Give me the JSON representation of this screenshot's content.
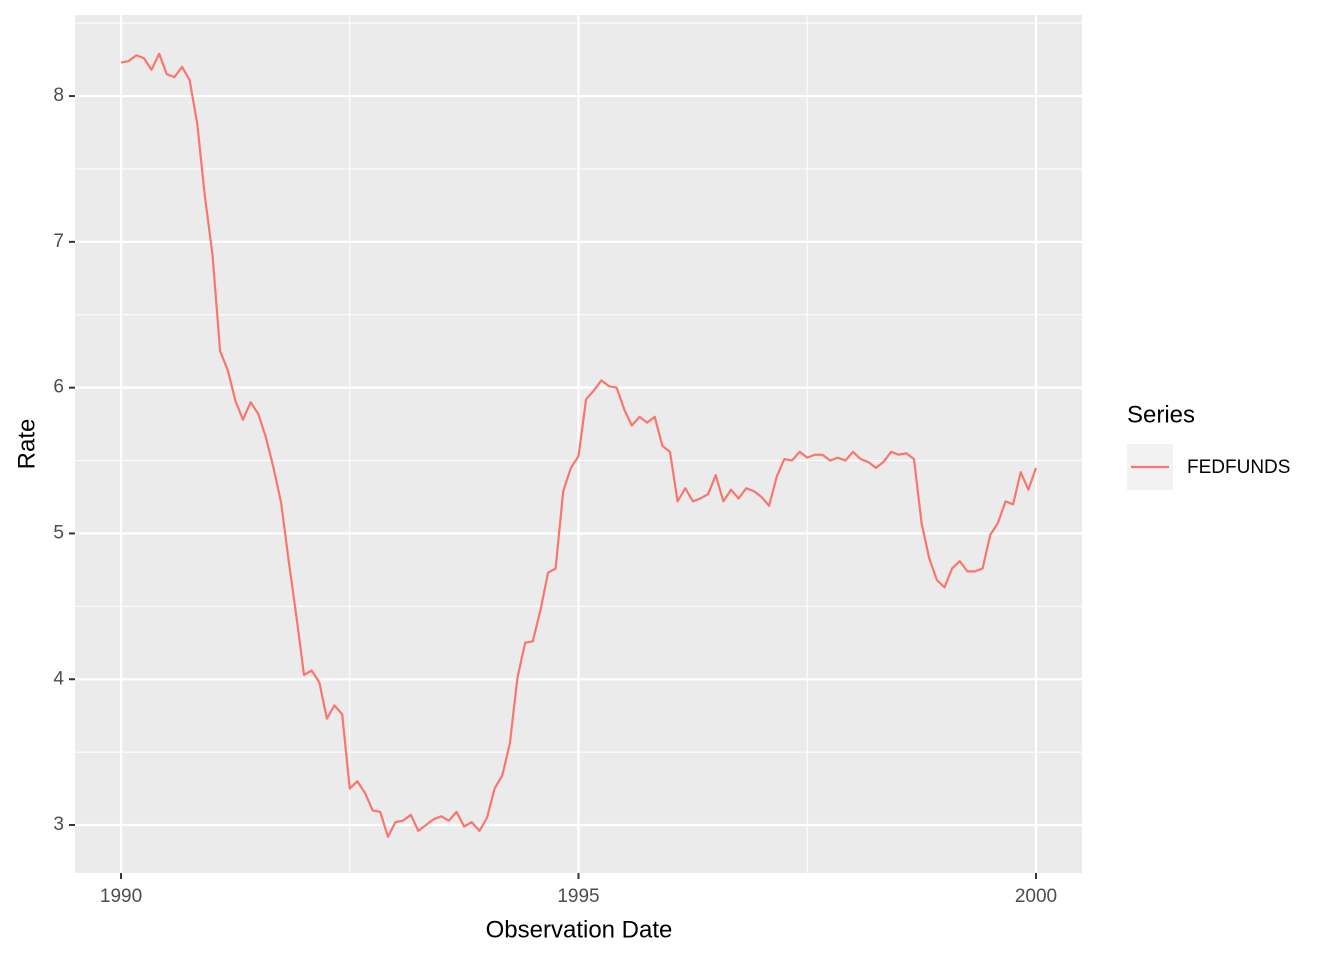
{
  "chart_data": {
    "type": "line",
    "x_label": "Observation Date",
    "y_label": "Rate",
    "legend_title": "Series",
    "legend_position": "right",
    "grid": true,
    "xlim": [
      1989.497,
      2000.503
    ],
    "xticks": [
      1990,
      1995,
      2000
    ],
    "ylim": [
      2.671,
      8.556
    ],
    "yticks": [
      3,
      4,
      5,
      6,
      7,
      8
    ],
    "x": [
      1990,
      1990.083,
      1990.167,
      1990.25,
      1990.333,
      1990.417,
      1990.5,
      1990.583,
      1990.667,
      1990.75,
      1990.833,
      1990.917,
      1991,
      1991.083,
      1991.167,
      1991.25,
      1991.333,
      1991.417,
      1991.5,
      1991.583,
      1991.667,
      1991.75,
      1991.833,
      1991.917,
      1992,
      1992.083,
      1992.167,
      1992.25,
      1992.333,
      1992.417,
      1992.5,
      1992.583,
      1992.667,
      1992.75,
      1992.833,
      1992.917,
      1993,
      1993.083,
      1993.167,
      1993.25,
      1993.333,
      1993.417,
      1993.5,
      1993.583,
      1993.667,
      1993.75,
      1993.833,
      1993.917,
      1994,
      1994.083,
      1994.167,
      1994.25,
      1994.333,
      1994.417,
      1994.5,
      1994.583,
      1994.667,
      1994.75,
      1994.833,
      1994.917,
      1995,
      1995.083,
      1995.167,
      1995.25,
      1995.333,
      1995.417,
      1995.5,
      1995.583,
      1995.667,
      1995.75,
      1995.833,
      1995.917,
      1996,
      1996.083,
      1996.167,
      1996.25,
      1996.333,
      1996.417,
      1996.5,
      1996.583,
      1996.667,
      1996.75,
      1996.833,
      1996.917,
      1997,
      1997.083,
      1997.167,
      1997.25,
      1997.333,
      1997.417,
      1997.5,
      1997.583,
      1997.667,
      1997.75,
      1997.833,
      1997.917,
      1998,
      1998.083,
      1998.167,
      1998.25,
      1998.333,
      1998.417,
      1998.5,
      1998.583,
      1998.667,
      1998.75,
      1998.833,
      1998.917,
      1999,
      1999.083,
      1999.167,
      1999.25,
      1999.333,
      1999.417,
      1999.5,
      1999.583,
      1999.667,
      1999.75,
      1999.833,
      1999.917,
      2000
    ],
    "series": [
      {
        "name": "FEDFUNDS",
        "color": "#F8766D",
        "values": [
          8.23,
          8.24,
          8.28,
          8.26,
          8.18,
          8.29,
          8.15,
          8.13,
          8.2,
          8.11,
          7.81,
          7.31,
          6.91,
          6.25,
          6.12,
          5.91,
          5.78,
          5.9,
          5.82,
          5.66,
          5.45,
          5.21,
          4.81,
          4.43,
          4.03,
          4.06,
          3.98,
          3.73,
          3.82,
          3.76,
          3.25,
          3.3,
          3.22,
          3.1,
          3.09,
          2.92,
          3.02,
          3.03,
          3.07,
          2.96,
          3.0,
          3.04,
          3.06,
          3.03,
          3.09,
          2.99,
          3.02,
          2.96,
          3.05,
          3.25,
          3.34,
          3.56,
          4.01,
          4.25,
          4.26,
          4.47,
          4.73,
          4.76,
          5.29,
          5.45,
          5.53,
          5.92,
          5.98,
          6.05,
          6.01,
          6.0,
          5.85,
          5.74,
          5.8,
          5.76,
          5.8,
          5.6,
          5.56,
          5.22,
          5.31,
          5.22,
          5.24,
          5.27,
          5.4,
          5.22,
          5.3,
          5.24,
          5.31,
          5.29,
          5.25,
          5.19,
          5.39,
          5.51,
          5.5,
          5.56,
          5.52,
          5.54,
          5.54,
          5.5,
          5.52,
          5.5,
          5.56,
          5.51,
          5.49,
          5.45,
          5.49,
          5.56,
          5.54,
          5.55,
          5.51,
          5.07,
          4.83,
          4.68,
          4.63,
          4.76,
          4.81,
          4.74,
          4.74,
          4.76,
          4.99,
          5.07,
          5.22,
          5.2,
          5.42,
          5.3,
          5.45
        ]
      }
    ]
  }
}
